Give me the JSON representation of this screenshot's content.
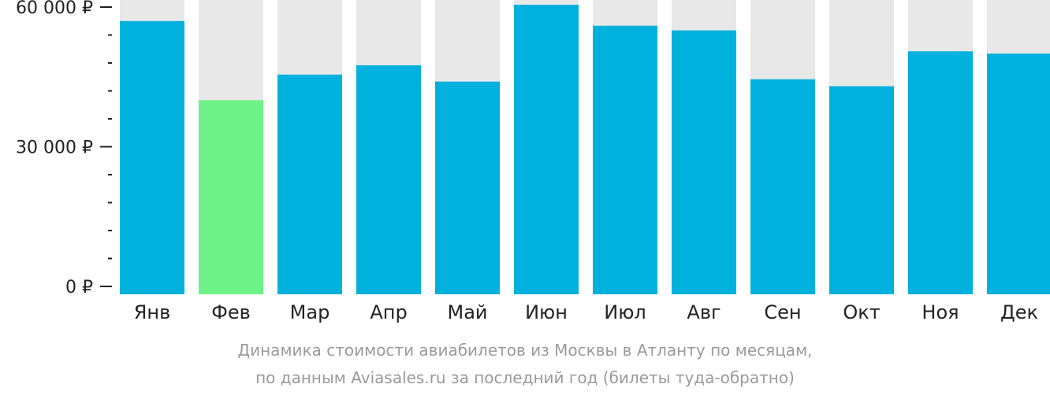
{
  "chart_data": {
    "type": "bar",
    "categories": [
      "Янв",
      "Фев",
      "Мар",
      "Апр",
      "Май",
      "Июн",
      "Июл",
      "Авг",
      "Сен",
      "Окт",
      "Ноя",
      "Дек"
    ],
    "values": [
      57000,
      40000,
      45500,
      47500,
      44000,
      60500,
      56000,
      55000,
      44500,
      43000,
      50500,
      50000
    ],
    "highlight_index": 1,
    "ylim": [
      0,
      60000
    ],
    "yticks": [
      {
        "value": 0,
        "label": "0 ₽"
      },
      {
        "value": 30000,
        "label": "30 000 ₽"
      },
      {
        "value": 60000,
        "label": "60 000 ₽"
      }
    ],
    "minor_tick_step": 6000,
    "title": "",
    "xlabel": "",
    "ylabel": "",
    "colors": {
      "bar": "#00b1dd",
      "highlight": "#6cf287",
      "track": "#e8e8e8",
      "axis": "#222222"
    }
  },
  "caption": {
    "line1": "Динамика стоимости авиабилетов из Москвы в Атланту по месяцам,",
    "line2": "по данным Aviasales.ru за последний год (билеты туда-обратно)"
  }
}
